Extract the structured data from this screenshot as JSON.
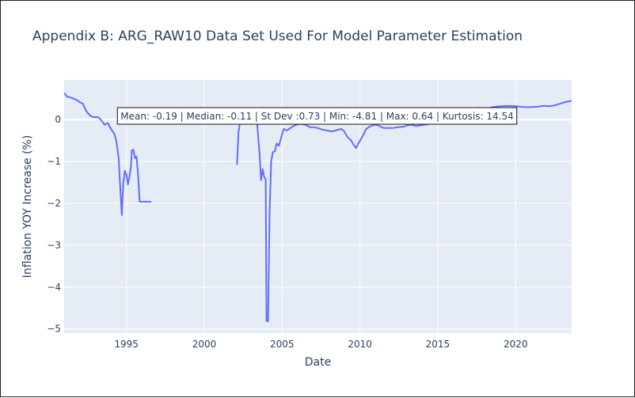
{
  "chart_data": {
    "type": "line",
    "title": "Appendix B: ARG_RAW10 Data Set Used For Model Parameter Estimation",
    "xlabel": "Date",
    "ylabel": "Inflation YOY Increase (%)",
    "xlim": [
      1991.0,
      2023.6
    ],
    "ylim": [
      -5.1,
      0.95
    ],
    "x_ticks": [
      1995,
      2000,
      2005,
      2010,
      2015,
      2020
    ],
    "x_tick_labels": [
      "1995",
      "2000",
      "2005",
      "2010",
      "2015",
      "2020"
    ],
    "y_ticks": [
      0,
      -1,
      -2,
      -3,
      -4,
      -5
    ],
    "y_tick_labels": [
      "0",
      "−1",
      "−2",
      "−3",
      "−4",
      "−5"
    ],
    "grid": true,
    "line_color": "#636efa",
    "plot_bgcolor": "#e5ecf6",
    "annotation": "Mean: -0.19 | Median: -0.11 | St Dev :0.73 | Min: -4.81 | Max: 0.64 | Kurtosis: 14.54",
    "segments": [
      [
        [
          1991.0,
          0.64
        ],
        [
          1991.2,
          0.55
        ],
        [
          1991.5,
          0.52
        ],
        [
          1991.8,
          0.47
        ],
        [
          1992.0,
          0.42
        ],
        [
          1992.2,
          0.38
        ],
        [
          1992.4,
          0.22
        ],
        [
          1992.6,
          0.12
        ],
        [
          1992.8,
          0.07
        ],
        [
          1993.0,
          0.06
        ],
        [
          1993.2,
          0.06
        ],
        [
          1993.4,
          -0.02
        ],
        [
          1993.6,
          -0.12
        ],
        [
          1993.8,
          -0.08
        ],
        [
          1994.0,
          -0.22
        ],
        [
          1994.2,
          -0.32
        ],
        [
          1994.35,
          -0.5
        ],
        [
          1994.5,
          -0.9
        ],
        [
          1994.6,
          -1.6
        ],
        [
          1994.7,
          -2.28
        ],
        [
          1994.8,
          -1.5
        ],
        [
          1994.9,
          -1.22
        ],
        [
          1995.0,
          -1.32
        ],
        [
          1995.1,
          -1.55
        ],
        [
          1995.2,
          -1.35
        ],
        [
          1995.3,
          -1.1
        ],
        [
          1995.35,
          -0.73
        ],
        [
          1995.45,
          -0.72
        ],
        [
          1995.55,
          -0.92
        ],
        [
          1995.65,
          -0.88
        ],
        [
          1995.75,
          -1.3
        ],
        [
          1995.85,
          -1.96
        ],
        [
          1996.0,
          -1.96
        ],
        [
          1996.3,
          -1.96
        ],
        [
          1996.6,
          -1.96
        ]
      ],
      [
        [
          2002.1,
          -1.08
        ],
        [
          2002.2,
          -0.3
        ],
        [
          2002.3,
          -0.05
        ],
        [
          2002.5,
          0.05
        ],
        [
          2002.8,
          0.1
        ],
        [
          2003.0,
          0.1
        ],
        [
          2003.2,
          0.05
        ],
        [
          2003.4,
          -0.1
        ],
        [
          2003.55,
          -0.8
        ],
        [
          2003.65,
          -1.45
        ],
        [
          2003.75,
          -1.18
        ],
        [
          2003.85,
          -1.38
        ],
        [
          2003.95,
          -1.42
        ],
        [
          2004.0,
          -4.81
        ],
        [
          2004.1,
          -4.81
        ],
        [
          2004.2,
          -2.2
        ],
        [
          2004.3,
          -1.0
        ],
        [
          2004.4,
          -0.78
        ],
        [
          2004.55,
          -0.75
        ],
        [
          2004.65,
          -0.57
        ],
        [
          2004.8,
          -0.62
        ],
        [
          2004.95,
          -0.42
        ],
        [
          2005.1,
          -0.22
        ],
        [
          2005.3,
          -0.26
        ],
        [
          2005.6,
          -0.18
        ],
        [
          2005.9,
          -0.12
        ],
        [
          2006.2,
          -0.1
        ],
        [
          2006.5,
          -0.12
        ],
        [
          2006.8,
          -0.18
        ],
        [
          2007.0,
          -0.18
        ],
        [
          2007.3,
          -0.2
        ],
        [
          2007.6,
          -0.24
        ],
        [
          2007.9,
          -0.26
        ],
        [
          2008.2,
          -0.28
        ],
        [
          2008.5,
          -0.25
        ],
        [
          2008.8,
          -0.22
        ],
        [
          2009.0,
          -0.28
        ],
        [
          2009.2,
          -0.42
        ],
        [
          2009.4,
          -0.48
        ],
        [
          2009.6,
          -0.6
        ],
        [
          2009.75,
          -0.68
        ],
        [
          2009.9,
          -0.57
        ],
        [
          2010.2,
          -0.38
        ],
        [
          2010.4,
          -0.22
        ],
        [
          2010.7,
          -0.15
        ],
        [
          2011.0,
          -0.12
        ],
        [
          2011.2,
          -0.14
        ],
        [
          2011.5,
          -0.2
        ],
        [
          2011.8,
          -0.2
        ],
        [
          2012.1,
          -0.2
        ],
        [
          2012.4,
          -0.18
        ],
        [
          2012.8,
          -0.17
        ],
        [
          2013.0,
          -0.14
        ],
        [
          2013.3,
          -0.12
        ],
        [
          2013.6,
          -0.15
        ],
        [
          2014.0,
          -0.13
        ],
        [
          2014.5,
          -0.1
        ],
        [
          2015.0,
          -0.07
        ],
        [
          2015.5,
          -0.02
        ],
        [
          2016.0,
          0.02
        ],
        [
          2016.5,
          0.1
        ],
        [
          2017.0,
          0.14
        ],
        [
          2017.5,
          0.18
        ],
        [
          2018.0,
          0.24
        ],
        [
          2018.5,
          0.3
        ],
        [
          2019.0,
          0.32
        ],
        [
          2019.5,
          0.33
        ],
        [
          2020.0,
          0.32
        ],
        [
          2020.5,
          0.3
        ],
        [
          2021.0,
          0.3
        ],
        [
          2021.4,
          0.31
        ],
        [
          2021.8,
          0.33
        ],
        [
          2022.2,
          0.32
        ],
        [
          2022.6,
          0.35
        ],
        [
          2023.0,
          0.4
        ],
        [
          2023.3,
          0.43
        ],
        [
          2023.6,
          0.45
        ]
      ]
    ]
  }
}
